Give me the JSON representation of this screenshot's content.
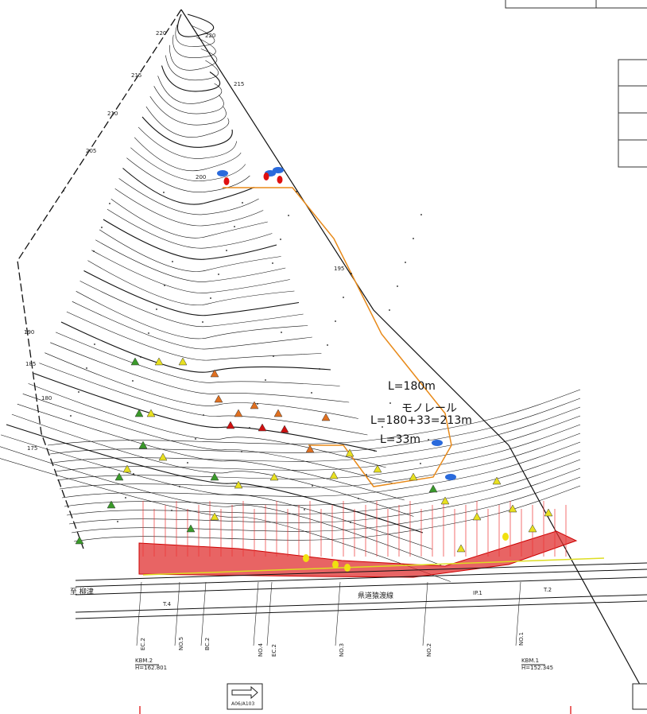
{
  "monorail": {
    "name": "モノレール",
    "length_main": "L=180m",
    "length_total": "L=180+33=213m",
    "length_branch": "L=33m"
  },
  "road": {
    "name": "県道猿渡線",
    "destination": "至 柳津"
  },
  "benchmarks": [
    {
      "name": "KBM.2",
      "height": "H=162.801"
    },
    {
      "name": "KBM.1",
      "height": "H=152.345"
    }
  ],
  "contour_labels": [
    "220",
    "220",
    "215",
    "215",
    "210",
    "205",
    "200",
    "195",
    "190",
    "185",
    "180",
    "175"
  ],
  "stations": [
    "EC.2",
    "NO.5",
    "BC.2",
    "NO.4",
    "EC.2",
    "NO.3",
    "NO.2",
    "NO.1",
    "IP.1",
    "T.4",
    "T.2"
  ],
  "reference": "A06/A103"
}
